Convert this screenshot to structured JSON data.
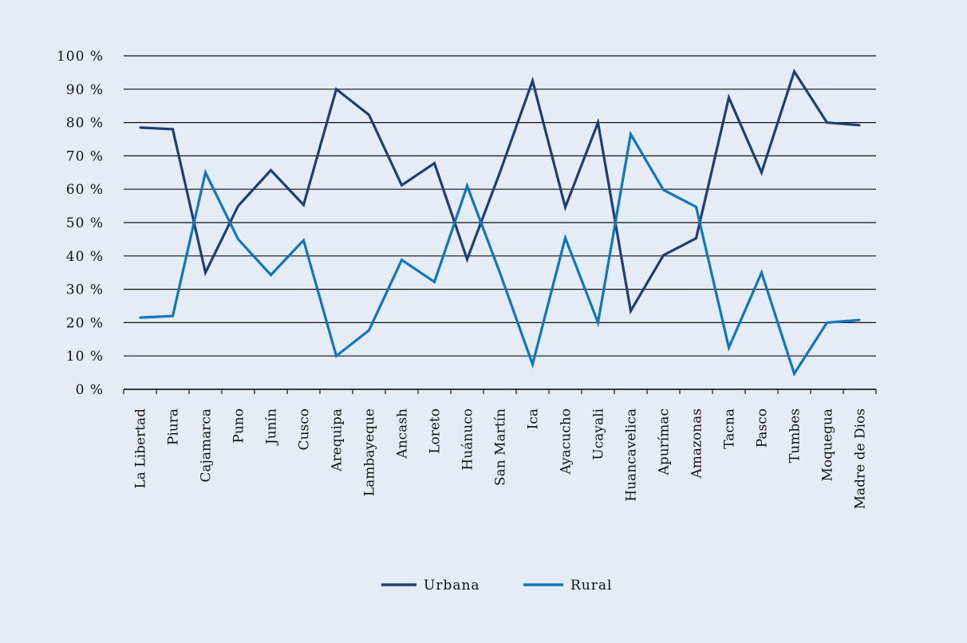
{
  "colors": {
    "background": "#e6ecf5",
    "gridline": "#111111",
    "urbana": "#1f3e73",
    "rural": "#0f77bd"
  },
  "chart_data": {
    "type": "line",
    "categories": [
      "La Libertad",
      "Piura",
      "Cajamarca",
      "Puno",
      "Junín",
      "Cusco",
      "Arequipa",
      "Lambayeque",
      "Ancash",
      "Loreto",
      "Huánuco",
      "San Martín",
      "Ica",
      "Ayacucho",
      "Ucayali",
      "Huancavelica",
      "Apurímac",
      "Amazonas",
      "Tacna",
      "Pasco",
      "Tumbes",
      "Moquegua",
      "Madre de Dios"
    ],
    "series": [
      {
        "name": "Urbana",
        "color": "#1f3e73",
        "values": [
          78.5,
          78,
          35,
          55,
          65.7,
          55.3,
          90,
          82.3,
          61.2,
          67.8,
          39,
          65,
          92.5,
          54.6,
          80,
          23.5,
          40.2,
          45.3,
          87.5,
          65,
          95.3,
          80,
          79.2
        ]
      },
      {
        "name": "Rural",
        "color": "#0f77bd",
        "values": [
          21.5,
          22,
          65,
          45,
          34.3,
          44.7,
          10,
          17.7,
          38.8,
          32.2,
          61,
          35,
          7.5,
          45.4,
          20,
          76.5,
          59.8,
          54.7,
          12.5,
          35,
          4.7,
          20,
          20.8
        ]
      }
    ],
    "ylim": [
      0,
      100
    ],
    "yticks": [
      0,
      10,
      20,
      30,
      40,
      50,
      60,
      70,
      80,
      90,
      100
    ],
    "ytick_labels": [
      "0 %",
      "10 %",
      "20 %",
      "30 %",
      "40 %",
      "50 %",
      "60 %",
      "70 %",
      "80 %",
      "90 %",
      "100 %"
    ],
    "grid": true,
    "legend_position": "bottom-center",
    "title": "",
    "xlabel": "",
    "ylabel": ""
  }
}
